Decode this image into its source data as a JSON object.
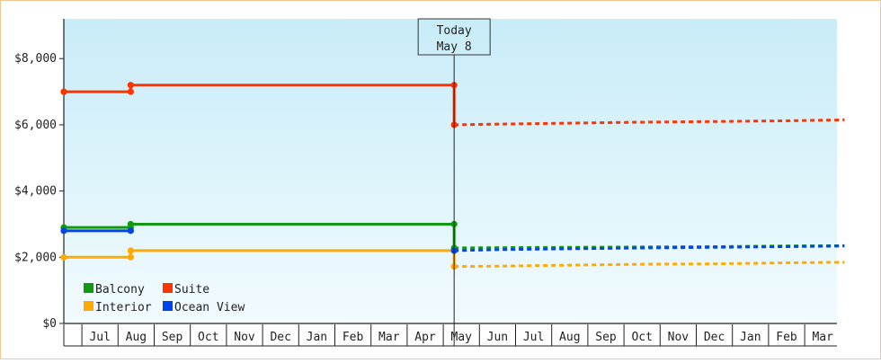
{
  "chart_data": {
    "type": "line",
    "y_ticks": [
      {
        "value": 0,
        "label": "$0"
      },
      {
        "value": 2000,
        "label": "$2,000"
      },
      {
        "value": 4000,
        "label": "$4,000"
      },
      {
        "value": 6000,
        "label": "$6,000"
      },
      {
        "value": 8000,
        "label": "$8,000"
      }
    ],
    "ylim": [
      0,
      9200
    ],
    "x_ticks": [
      "Jul",
      "Aug",
      "Sep",
      "Oct",
      "Nov",
      "Dec",
      "Jan",
      "Feb",
      "Mar",
      "Apr",
      "May",
      "Jun",
      "Jul",
      "Aug",
      "Sep",
      "Oct",
      "Nov",
      "Dec",
      "Jan",
      "Feb",
      "Mar"
    ],
    "marker": {
      "line1": "Today",
      "line2": "May 8"
    },
    "legend": {
      "placement": "bottom-left"
    },
    "series": [
      {
        "name": "Balcony",
        "color": "#119911",
        "history": [
          [
            0,
            2900
          ],
          [
            1.85,
            2900
          ],
          [
            1.85,
            3000
          ],
          [
            10.8,
            3000
          ],
          [
            10.8,
            2280
          ]
        ],
        "forecast": [
          [
            10.8,
            2280
          ],
          [
            12,
            2290
          ],
          [
            14,
            2300
          ],
          [
            16,
            2310
          ],
          [
            18,
            2320
          ],
          [
            19.9,
            2340
          ],
          [
            21.6,
            2350
          ]
        ]
      },
      {
        "name": "Suite",
        "color": "#ff3300",
        "history": [
          [
            0,
            7000
          ],
          [
            1.85,
            7000
          ],
          [
            1.85,
            7200
          ],
          [
            10.8,
            7200
          ],
          [
            10.8,
            6000
          ]
        ],
        "forecast": [
          [
            10.8,
            6000
          ],
          [
            12,
            6020
          ],
          [
            14,
            6050
          ],
          [
            16,
            6080
          ],
          [
            18,
            6100
          ],
          [
            19.9,
            6120
          ],
          [
            21.6,
            6150
          ]
        ]
      },
      {
        "name": "Interior",
        "color": "#ffaa00",
        "history": [
          [
            0,
            2000
          ],
          [
            1.85,
            2000
          ],
          [
            1.85,
            2200
          ],
          [
            10.8,
            2200
          ],
          [
            10.8,
            1720
          ]
        ],
        "forecast": [
          [
            10.8,
            1720
          ],
          [
            12,
            1730
          ],
          [
            14,
            1760
          ],
          [
            16,
            1790
          ],
          [
            18,
            1800
          ],
          [
            19.9,
            1830
          ],
          [
            21.6,
            1850
          ]
        ]
      },
      {
        "name": "Ocean View",
        "color": "#0044ee",
        "history": [
          [
            0,
            2800
          ],
          [
            1.85,
            2800
          ]
        ],
        "forecast": [
          [
            10.8,
            2200
          ],
          [
            12,
            2230
          ],
          [
            13.5,
            2250
          ],
          [
            16,
            2280
          ],
          [
            18,
            2300
          ],
          [
            19.9,
            2320
          ],
          [
            21.6,
            2340
          ]
        ]
      }
    ]
  }
}
